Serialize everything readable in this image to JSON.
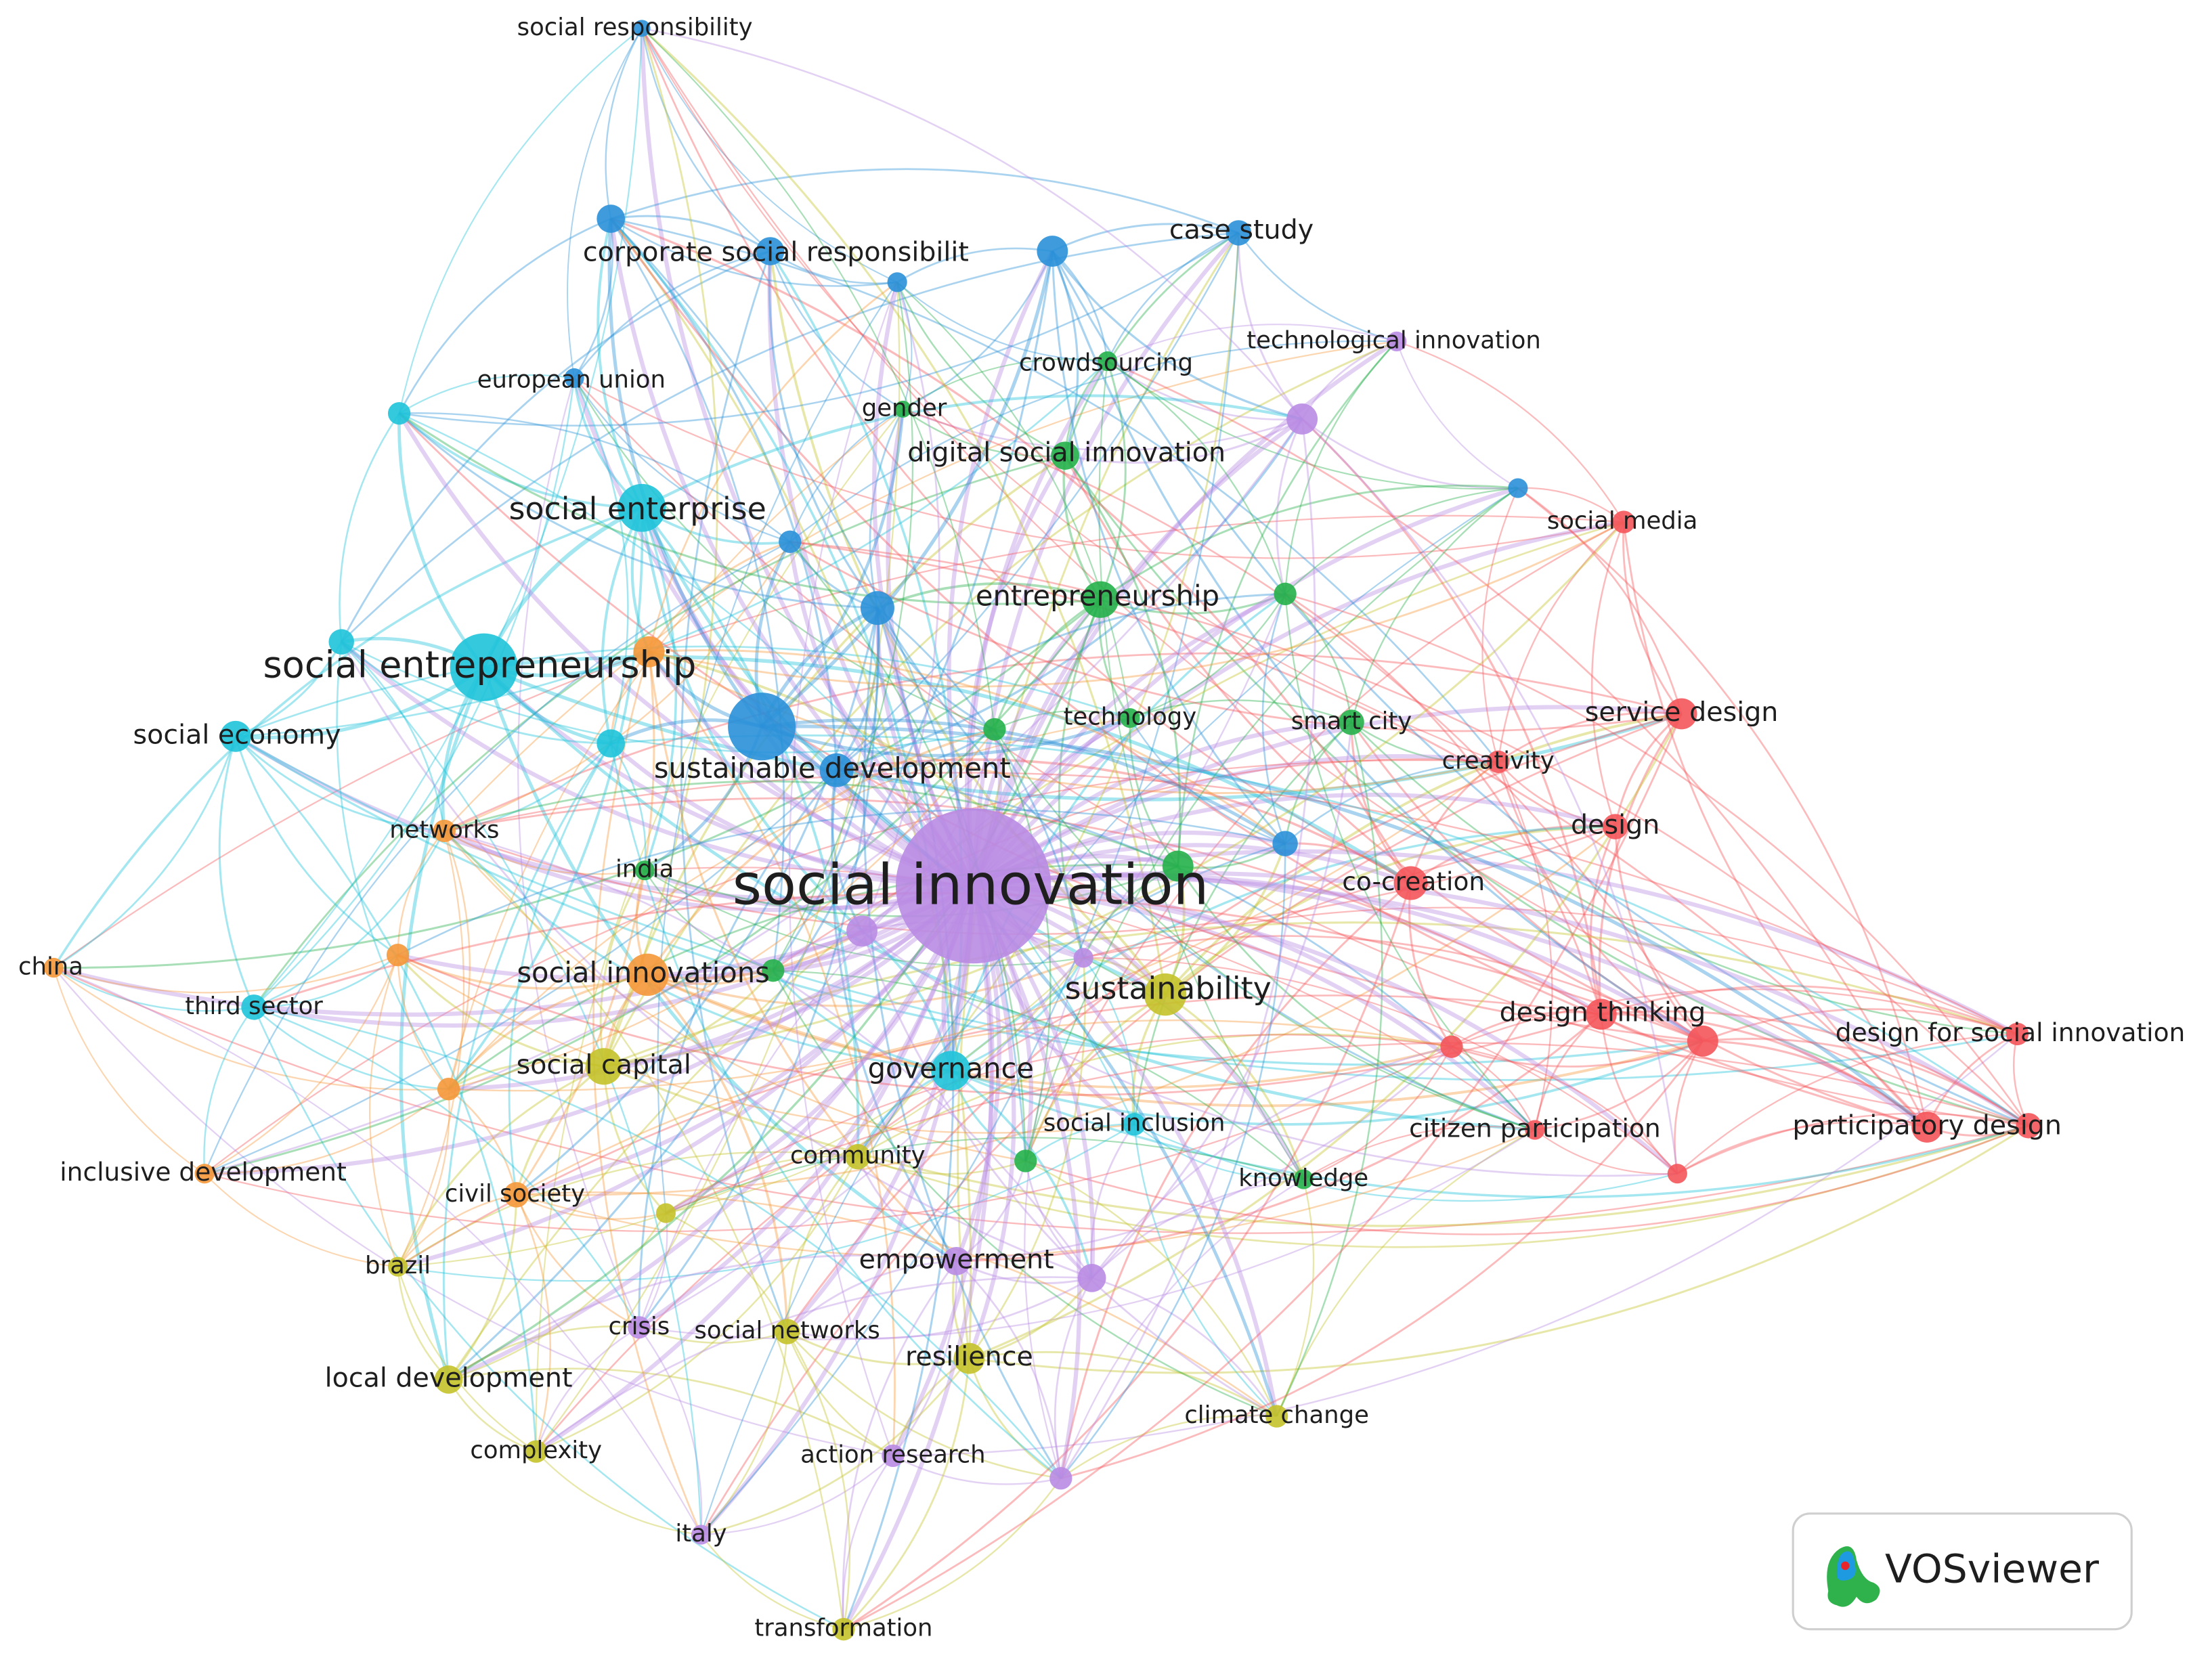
{
  "nodes": [
    {
      "label": "social responsibility",
      "color": "#2a90d8"
    },
    {
      "label": "corporate social responsibilit",
      "color": "#2a90d8"
    },
    {
      "label": "case study",
      "color": "#2a90d8"
    },
    {
      "label": "technological innovation",
      "color": "#b98be3"
    },
    {
      "label": "crowdsourcing",
      "color": "#25b04a"
    },
    {
      "label": "european union",
      "color": "#2a90d8"
    },
    {
      "label": "gender",
      "color": "#25b04a"
    },
    {
      "label": "digital social innovation",
      "color": "#25b04a"
    },
    {
      "label": "social enterprise",
      "color": "#1ec3d9"
    },
    {
      "label": "social media",
      "color": "#f4555a"
    },
    {
      "label": "entrepreneurship",
      "color": "#25b04a"
    },
    {
      "label": "social entrepreneurship",
      "color": "#1ec3d9"
    },
    {
      "label": "social economy",
      "color": "#1ec3d9"
    },
    {
      "label": "technology",
      "color": "#25b04a"
    },
    {
      "label": "smart city",
      "color": "#25b04a"
    },
    {
      "label": "service design",
      "color": "#f4555a"
    },
    {
      "label": "creativity",
      "color": "#f4555a"
    },
    {
      "label": "sustainable development",
      "color": "#2a90d8"
    },
    {
      "label": "networks",
      "color": "#f5983a"
    },
    {
      "label": "design",
      "color": "#f4555a"
    },
    {
      "label": "india",
      "color": "#25b04a"
    },
    {
      "label": "social innovation",
      "color": "#b98be3"
    },
    {
      "label": "co-creation",
      "color": "#f4555a"
    },
    {
      "label": "china",
      "color": "#f5983a"
    },
    {
      "label": "social innovations",
      "color": "#f5983a"
    },
    {
      "label": "sustainability",
      "color": "#c4c22a"
    },
    {
      "label": "third sector",
      "color": "#1ec3d9"
    },
    {
      "label": "design thinking",
      "color": "#f4555a"
    },
    {
      "label": "design for social innovation",
      "color": "#f4555a"
    },
    {
      "label": "social capital",
      "color": "#c4c22a"
    },
    {
      "label": "governance",
      "color": "#1ec3d9"
    },
    {
      "label": "social inclusion",
      "color": "#1ec3d9"
    },
    {
      "label": "citizen participation",
      "color": "#f4555a"
    },
    {
      "label": "participatory design",
      "color": "#f4555a"
    },
    {
      "label": "community",
      "color": "#c4c22a"
    },
    {
      "label": "inclusive development",
      "color": "#f5983a"
    },
    {
      "label": "knowledge",
      "color": "#25b04a"
    },
    {
      "label": "civil society",
      "color": "#f5983a"
    },
    {
      "label": "brazil",
      "color": "#c4c22a"
    },
    {
      "label": "empowerment",
      "color": "#b98be3"
    },
    {
      "label": "crisis",
      "color": "#b98be3"
    },
    {
      "label": "social networks",
      "color": "#c4c22a"
    },
    {
      "label": "resilience",
      "color": "#c4c22a"
    },
    {
      "label": "local development",
      "color": "#c4c22a"
    },
    {
      "label": "climate change",
      "color": "#c4c22a"
    },
    {
      "label": "complexity",
      "color": "#c4c22a"
    },
    {
      "label": "action research",
      "color": "#b98be3"
    },
    {
      "label": "italy",
      "color": "#b98be3"
    },
    {
      "label": "transformation",
      "color": "#c4c22a"
    }
  ],
  "logo": {
    "text": "VOSviewer"
  }
}
